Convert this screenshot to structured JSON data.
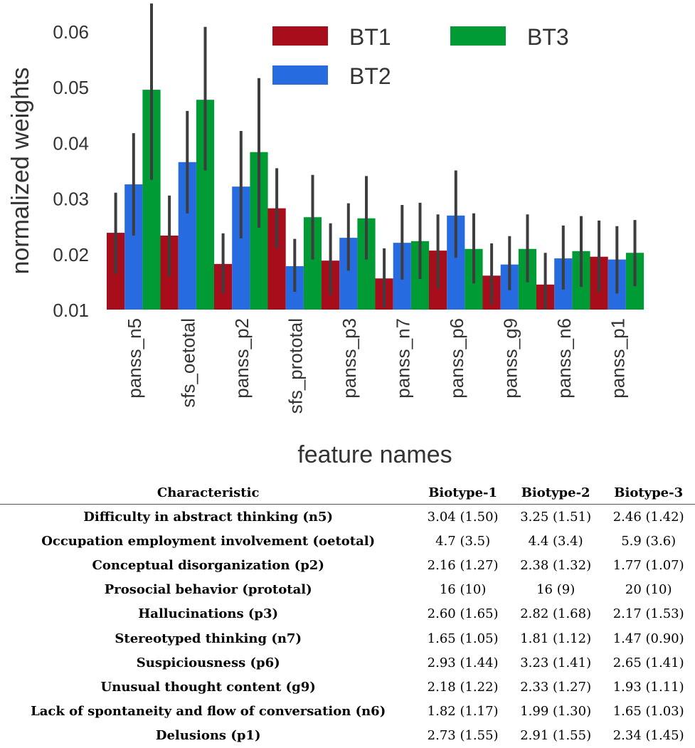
{
  "chart_data": {
    "type": "bar",
    "xlabel": "feature names",
    "ylabel": "normalized weights",
    "ylim": [
      0.01,
      0.065
    ],
    "yticks": [
      "0.01",
      "0.02",
      "0.03",
      "0.04",
      "0.05",
      "0.06"
    ],
    "legend_position": "top-right",
    "categories": [
      "panss_n5",
      "sfs_oetotal",
      "panss_p2",
      "sfs_prototal",
      "panss_p3",
      "panss_n7",
      "panss_p6",
      "panss_g9",
      "panss_n6",
      "panss_p1"
    ],
    "series": [
      {
        "name": "BT1",
        "color": "#a80d1b",
        "values": [
          0.0238,
          0.0233,
          0.0182,
          0.0282,
          0.0188,
          0.0156,
          0.0206,
          0.0161,
          0.0145,
          0.0195
        ],
        "err_low": [
          0.0164,
          0.016,
          0.0129,
          0.0211,
          0.0126,
          0.0104,
          0.0138,
          0.0109,
          0.01,
          0.0132
        ],
        "err_high": [
          0.031,
          0.0305,
          0.0237,
          0.0354,
          0.0255,
          0.021,
          0.0271,
          0.0219,
          0.0202,
          0.026
        ]
      },
      {
        "name": "BT2",
        "color": "#276be0",
        "values": [
          0.0325,
          0.0365,
          0.0321,
          0.0178,
          0.0229,
          0.022,
          0.0269,
          0.0181,
          0.0192,
          0.019
        ],
        "err_low": [
          0.0233,
          0.0273,
          0.0228,
          0.0132,
          0.017,
          0.0154,
          0.0193,
          0.0135,
          0.0136,
          0.0129
        ],
        "err_high": [
          0.0417,
          0.0457,
          0.0421,
          0.0227,
          0.0291,
          0.0288,
          0.035,
          0.0232,
          0.0251,
          0.025
        ]
      },
      {
        "name": "BT3",
        "color": "#019b35",
        "values": [
          0.0495,
          0.0477,
          0.0383,
          0.0266,
          0.0264,
          0.0223,
          0.0209,
          0.0209,
          0.0205,
          0.0202
        ],
        "err_low": [
          0.0333,
          0.035,
          0.0247,
          0.019,
          0.019,
          0.0155,
          0.0147,
          0.0149,
          0.0141,
          0.0142
        ],
        "err_high": [
          0.065,
          0.0608,
          0.0516,
          0.0342,
          0.034,
          0.0292,
          0.0273,
          0.0271,
          0.0268,
          0.0261
        ]
      }
    ]
  },
  "table": {
    "headers": [
      "Characteristic",
      "Biotype-1",
      "Biotype-2",
      "Biotype-3"
    ],
    "rows": [
      [
        "Difficulty in abstract thinking (n5)",
        "3.04 (1.50)",
        "3.25 (1.51)",
        "2.46 (1.42)"
      ],
      [
        "Occupation employment involvement (oetotal)",
        "4.7 (3.5)",
        "4.4 (3.4)",
        "5.9 (3.6)"
      ],
      [
        "Conceptual disorganization (p2)",
        "2.16 (1.27)",
        "2.38 (1.32)",
        "1.77 (1.07)"
      ],
      [
        "Prosocial behavior (prototal)",
        "16 (10)",
        "16 (9)",
        "20 (10)"
      ],
      [
        "Hallucinations (p3)",
        "2.60 (1.65)",
        "2.82 (1.68)",
        "2.17 (1.53)"
      ],
      [
        "Stereotyped thinking (n7)",
        "1.65 (1.05)",
        "1.81 (1.12)",
        "1.47 (0.90)"
      ],
      [
        "Suspiciousness (p6)",
        "2.93 (1.44)",
        "3.23 (1.41)",
        "2.65 (1.41)"
      ],
      [
        "Unusual thought content (g9)",
        "2.18 (1.22)",
        "2.33 (1.27)",
        "1.93 (1.11)"
      ],
      [
        "Lack of spontaneity and flow of conversation (n6)",
        "1.82 (1.17)",
        "1.99 (1.30)",
        "1.65 (1.03)"
      ],
      [
        "Delusions (p1)",
        "2.73 (1.55)",
        "2.91 (1.55)",
        "2.34 (1.45)"
      ]
    ]
  }
}
